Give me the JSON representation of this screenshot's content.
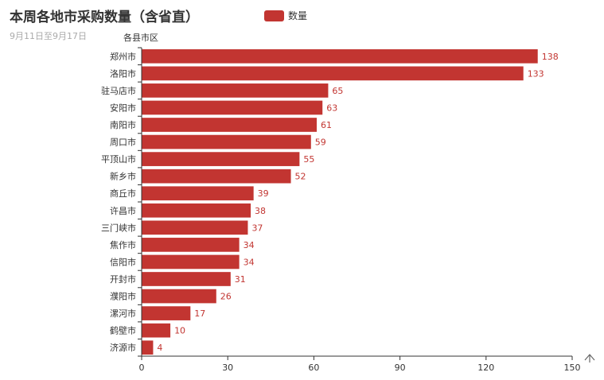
{
  "title": "本周各地市采购数量（含省直）",
  "subtitle": "9月11日至9月17日",
  "legend": {
    "label": "数量"
  },
  "colors": {
    "bar": "#c23531",
    "axis": "#333333",
    "text": "#333333",
    "subtext": "#aaaaaa"
  },
  "toolbox": {
    "icon": "chevron-up-icon"
  },
  "chart_data": {
    "type": "bar",
    "orientation": "horizontal",
    "ylabel": "各县市区",
    "xlim": [
      0,
      150
    ],
    "xticks": [
      0,
      30,
      60,
      90,
      120,
      150
    ],
    "grid": false,
    "legend_position": "top",
    "categories": [
      "郑州市",
      "洛阳市",
      "驻马店市",
      "安阳市",
      "南阳市",
      "周口市",
      "平顶山市",
      "新乡市",
      "商丘市",
      "许昌市",
      "三门峡市",
      "焦作市",
      "信阳市",
      "开封市",
      "濮阳市",
      "漯河市",
      "鹤壁市",
      "济源市"
    ],
    "series": [
      {
        "name": "数量",
        "values": [
          138,
          133,
          65,
          63,
          61,
          59,
          55,
          52,
          39,
          38,
          37,
          34,
          34,
          31,
          26,
          17,
          10,
          4
        ]
      }
    ]
  }
}
